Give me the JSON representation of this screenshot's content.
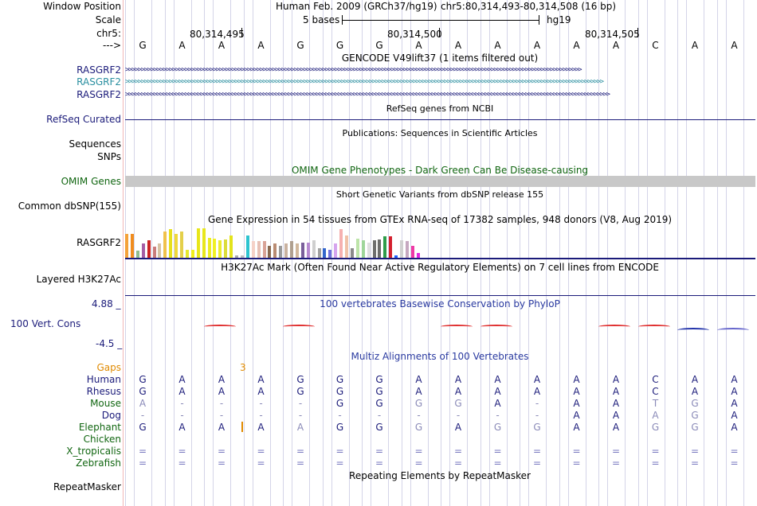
{
  "header": {
    "window_position_label": "Window Position",
    "assembly": "Human Feb. 2009 (GRCh37/hg19)",
    "position": "chr5:80,314,493-80,314,508 (16 bp)",
    "scale_label": "Scale",
    "scale_text": "5 bases",
    "scale_db": "hg19",
    "chrom_label": "chr5:",
    "coords": [
      "80,314,495",
      "80,314,500",
      "80,314,505"
    ],
    "strand_label": "--->"
  },
  "sequence": [
    "G",
    "A",
    "A",
    "A",
    "G",
    "G",
    "G",
    "A",
    "A",
    "A",
    "A",
    "A",
    "A",
    "C",
    "A",
    "A"
  ],
  "tracks": {
    "gencode_title": "GENCODE V49lift37 (1 items filtered out)",
    "gencode_genes": [
      "RASGRF2",
      "RASGRF2",
      "RASGRF2"
    ],
    "refseq_title": "RefSeq genes from NCBI",
    "refseq_label": "RefSeq Curated",
    "publications_title": "Publications: Sequences in Scientific Articles",
    "sequences_label": "Sequences",
    "snps_label": "SNPs",
    "omim_title": "OMIM Gene Phenotypes - Dark Green Can Be Disease-causing",
    "omim_label": "OMIM Genes",
    "dbsnp_title": "Short Genetic Variants from dbSNP release 155",
    "dbsnp_label": "Common dbSNP(155)",
    "gtex_title": "Gene Expression in 54 tissues from GTEx RNA-seq of 17382 samples, 948 donors (V8, Aug 2019)",
    "gtex_label": "RASGRF2",
    "h3k27_title": "H3K27Ac Mark (Often Found Near Active Regulatory Elements) on 7 cell lines from ENCODE",
    "h3k27_label": "Layered H3K27Ac",
    "cons_title": "100 vertebrates Basewise Conservation by PhyloP",
    "cons_label": "100 Vert. Cons",
    "cons_max": "4.88 _",
    "cons_min": "-4.5 _",
    "multiz_title": "Multiz Alignments of 100 Vertebrates",
    "gaps_label": "Gaps",
    "gaps_value": "3",
    "repeat_title": "Repeating Elements by RepeatMasker",
    "repeat_label": "RepeatMasker"
  },
  "gtex": {
    "values": [
      30,
      30,
      9,
      18,
      22,
      14,
      18,
      33,
      36,
      30,
      33,
      10,
      10,
      37,
      37,
      25,
      24,
      22,
      23,
      28,
      3,
      3,
      28,
      21,
      21,
      21,
      15,
      18,
      15,
      18,
      21,
      18,
      19,
      19,
      22,
      12,
      12,
      10,
      18,
      36,
      28,
      12,
      24,
      22,
      19,
      22,
      23,
      27,
      27,
      3,
      22,
      21,
      15,
      6
    ],
    "colors": [
      "#f4a23a",
      "#f08c1e",
      "#8fbc8f",
      "#a65da4",
      "#cc2222",
      "#c97b7b",
      "#d6c3a3",
      "#f0c24b",
      "#e6e01d",
      "#f0d83a",
      "#e4d04a",
      "#e6e82d",
      "#f2ee1c",
      "#e8e61a",
      "#e8e71c",
      "#ecec24",
      "#f0f022",
      "#eceb2e",
      "#dcdc3c",
      "#e3e31b",
      "#aaaaaa",
      "#bfbfbf",
      "#2ec4d0",
      "#f5d1c7",
      "#e7c0b5",
      "#d9a397",
      "#8a6a50",
      "#b98c73",
      "#9a9a9a",
      "#c9b2a0",
      "#b0a090",
      "#d1b89d",
      "#7a5f9b",
      "#b78ad1",
      "#cfcfcf",
      "#a0a0a0",
      "#3366cc",
      "#7070dd",
      "#d6a4ee",
      "#f6b0b0",
      "#f0c2a8",
      "#8a8a8a",
      "#bde4a9",
      "#9fd69a",
      "#e0e0e0",
      "#6e6e6e",
      "#6b6b6b",
      "#2e9c4a",
      "#d4202e",
      "#1f60ff",
      "#d0d0d0",
      "#c6a8c0",
      "#ef3aa6",
      "#e028e0"
    ]
  },
  "conservation": [
    {
      "base": 2,
      "color": "#e03030"
    },
    {
      "base": 4,
      "color": "#e03030"
    },
    {
      "base": 8,
      "color": "#e03030"
    },
    {
      "base": 9,
      "color": "#e03030"
    },
    {
      "base": 12,
      "color": "#e03030"
    },
    {
      "base": 13,
      "color": "#e03030"
    },
    {
      "base": 14,
      "color": "#2233aa"
    },
    {
      "base": 15,
      "color": "#6666cc"
    }
  ],
  "species": [
    {
      "name": "Human",
      "color": "#1b1b7a",
      "bases": [
        "G",
        "A",
        "A",
        "A",
        "G",
        "G",
        "G",
        "A",
        "A",
        "A",
        "A",
        "A",
        "A",
        "C",
        "A",
        "A"
      ],
      "dim": []
    },
    {
      "name": "Rhesus",
      "color": "#1b1b7a",
      "bases": [
        "G",
        "A",
        "A",
        "A",
        "G",
        "G",
        "G",
        "A",
        "A",
        "A",
        "A",
        "A",
        "A",
        "C",
        "A",
        "A"
      ],
      "dim": []
    },
    {
      "name": "Mouse",
      "color": "#116611",
      "bases": [
        "A",
        "-",
        "-",
        "-",
        "-",
        "G",
        "G",
        "G",
        "G",
        "A",
        "-",
        "A",
        "A",
        "T",
        "G",
        "A"
      ],
      "dim": [
        0,
        1,
        2,
        3,
        4,
        7,
        8,
        10,
        13,
        14
      ]
    },
    {
      "name": "Dog",
      "color": "#1b1b7a",
      "bases": [
        "-",
        "-",
        "-",
        "-",
        "-",
        "-",
        "-",
        "-",
        "-",
        "-",
        "-",
        "A",
        "A",
        "A",
        "G",
        "A"
      ],
      "dim": [
        0,
        1,
        2,
        3,
        4,
        5,
        6,
        7,
        8,
        9,
        10,
        13,
        14
      ]
    },
    {
      "name": "Elephant",
      "color": "#116611",
      "bases": [
        "G",
        "A",
        "A",
        "A",
        "A",
        "G",
        "G",
        "G",
        "A",
        "G",
        "G",
        "A",
        "A",
        "G",
        "G",
        "A"
      ],
      "dim": [
        4,
        7,
        9,
        10,
        13,
        14
      ]
    },
    {
      "name": "Chicken",
      "color": "#116611",
      "bases": [],
      "dim": []
    },
    {
      "name": "X_tropicalis",
      "color": "#116611",
      "bases": [
        "=",
        "=",
        "=",
        "=",
        "=",
        "=",
        "=",
        "=",
        "=",
        "=",
        "=",
        "=",
        "=",
        "=",
        "=",
        "="
      ],
      "dim": []
    },
    {
      "name": "Zebrafish",
      "color": "#116611",
      "bases": [
        "=",
        "=",
        "=",
        "=",
        "=",
        "=",
        "=",
        "=",
        "=",
        "=",
        "=",
        "=",
        "=",
        "=",
        "=",
        "="
      ],
      "dim": []
    }
  ]
}
